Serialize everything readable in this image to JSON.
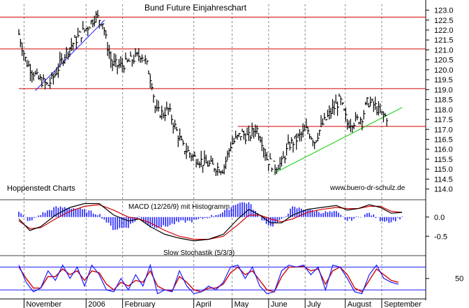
{
  "chart_data": {
    "type": "line",
    "title": "Bund Future Einjahreschart",
    "source_left": "Hoppenstedt Charts",
    "source_right": "www.buero-dr-schulz.de",
    "colors": {
      "price": "#000000",
      "support": "#d00000",
      "trend_up": "#1a1aff",
      "trend_green": "#00cc00",
      "macd": "#000000",
      "signal": "#d00000",
      "hist": "#2020ff",
      "stoch_k": "#1a1aff",
      "stoch_d": "#d00000"
    },
    "x_labels": [
      {
        "label": "November",
        "m": 0.2
      },
      {
        "label": "2006",
        "m": 1.9
      },
      {
        "label": "February",
        "m": 2.9
      },
      {
        "label": "April",
        "m": 4.85
      },
      {
        "label": "May",
        "m": 5.9
      },
      {
        "label": "June",
        "m": 6.9
      },
      {
        "label": "July",
        "m": 7.9
      },
      {
        "label": "August",
        "m": 9.0
      },
      {
        "label": "September",
        "m": 10.0
      }
    ],
    "price_panel": {
      "y_ticks": [
        114.0,
        114.5,
        115.0,
        115.5,
        116.0,
        116.5,
        117.0,
        117.5,
        118.0,
        118.5,
        119.0,
        119.5,
        120.0,
        120.5,
        121.0,
        121.5,
        122.0,
        122.5,
        123.0
      ],
      "ylim": [
        113.6,
        123.3
      ],
      "horizontal_lines": [
        122.65,
        121.05,
        119.05,
        117.15
      ],
      "price_path": [
        [
          0.0,
          121.8
        ],
        [
          0.2,
          120.4
        ],
        [
          0.5,
          119.6
        ],
        [
          0.8,
          119.2
        ],
        [
          1.0,
          119.8
        ],
        [
          1.3,
          120.9
        ],
        [
          1.6,
          121.6
        ],
        [
          1.9,
          122.2
        ],
        [
          2.1,
          122.7
        ],
        [
          2.3,
          122.4
        ],
        [
          2.4,
          121.4
        ],
        [
          2.55,
          120.3
        ],
        [
          2.8,
          120.2
        ],
        [
          3.1,
          120.5
        ],
        [
          3.35,
          120.8
        ],
        [
          3.5,
          120.3
        ],
        [
          3.65,
          119.3
        ],
        [
          3.75,
          117.9
        ],
        [
          3.95,
          117.8
        ],
        [
          4.1,
          118.0
        ],
        [
          4.3,
          117.0
        ],
        [
          4.5,
          116.1
        ],
        [
          4.8,
          115.6
        ],
        [
          5.1,
          115.3
        ],
        [
          5.4,
          115.1
        ],
        [
          5.6,
          115.0
        ],
        [
          5.8,
          116.2
        ],
        [
          6.1,
          116.8
        ],
        [
          6.3,
          116.6
        ],
        [
          6.5,
          117.1
        ],
        [
          6.65,
          116.5
        ],
        [
          6.8,
          115.5
        ],
        [
          7.0,
          115.1
        ],
        [
          7.2,
          115.3
        ],
        [
          7.4,
          116.2
        ],
        [
          7.6,
          116.5
        ],
        [
          7.9,
          117.0
        ],
        [
          8.1,
          116.4
        ],
        [
          8.3,
          117.2
        ],
        [
          8.6,
          118.0
        ],
        [
          8.8,
          118.5
        ],
        [
          9.0,
          117.3
        ],
        [
          9.2,
          117.4
        ],
        [
          9.4,
          117.6
        ],
        [
          9.55,
          118.4
        ],
        [
          9.75,
          118.2
        ],
        [
          9.9,
          117.8
        ],
        [
          10.1,
          117.6
        ]
      ],
      "trend_lines": [
        {
          "from": [
            0.45,
            118.95
          ],
          "to": [
            2.35,
            122.5
          ],
          "color": "#1a1aff"
        },
        {
          "from": [
            7.0,
            114.8
          ],
          "to": [
            10.5,
            118.1
          ],
          "color": "#00cc00"
        }
      ]
    },
    "macd_panel": {
      "label": "MACD (12/26/9) mit Histogramm",
      "y_ticks": [
        0.0,
        -0.5
      ],
      "ylim": [
        -0.75,
        0.45
      ],
      "macd_path": [
        [
          0.0,
          -0.05
        ],
        [
          0.3,
          -0.35
        ],
        [
          0.6,
          -0.25
        ],
        [
          1.0,
          0.05
        ],
        [
          1.4,
          0.25
        ],
        [
          1.8,
          0.35
        ],
        [
          2.2,
          0.35
        ],
        [
          2.6,
          0.05
        ],
        [
          3.0,
          -0.1
        ],
        [
          3.3,
          -0.05
        ],
        [
          3.6,
          -0.25
        ],
        [
          4.0,
          -0.45
        ],
        [
          4.4,
          -0.55
        ],
        [
          4.8,
          -0.62
        ],
        [
          5.2,
          -0.58
        ],
        [
          5.6,
          -0.45
        ],
        [
          6.0,
          -0.05
        ],
        [
          6.3,
          0.2
        ],
        [
          6.6,
          0.05
        ],
        [
          6.9,
          -0.15
        ],
        [
          7.2,
          -0.15
        ],
        [
          7.5,
          0.05
        ],
        [
          7.9,
          0.2
        ],
        [
          8.3,
          0.25
        ],
        [
          8.7,
          0.3
        ],
        [
          9.0,
          0.18
        ],
        [
          9.3,
          0.22
        ],
        [
          9.6,
          0.32
        ],
        [
          9.9,
          0.25
        ],
        [
          10.2,
          0.1
        ],
        [
          10.5,
          0.12
        ]
      ],
      "signal_path": [
        [
          0.0,
          -0.1
        ],
        [
          0.3,
          -0.3
        ],
        [
          0.6,
          -0.28
        ],
        [
          1.0,
          -0.05
        ],
        [
          1.4,
          0.15
        ],
        [
          1.8,
          0.28
        ],
        [
          2.2,
          0.32
        ],
        [
          2.6,
          0.18
        ],
        [
          3.0,
          0.0
        ],
        [
          3.3,
          -0.05
        ],
        [
          3.6,
          -0.15
        ],
        [
          4.0,
          -0.35
        ],
        [
          4.4,
          -0.5
        ],
        [
          4.8,
          -0.58
        ],
        [
          5.2,
          -0.58
        ],
        [
          5.6,
          -0.5
        ],
        [
          6.0,
          -0.2
        ],
        [
          6.3,
          0.05
        ],
        [
          6.6,
          0.05
        ],
        [
          6.9,
          -0.05
        ],
        [
          7.2,
          -0.12
        ],
        [
          7.5,
          -0.05
        ],
        [
          7.9,
          0.12
        ],
        [
          8.3,
          0.2
        ],
        [
          8.7,
          0.25
        ],
        [
          9.0,
          0.22
        ],
        [
          9.3,
          0.22
        ],
        [
          9.6,
          0.28
        ],
        [
          9.9,
          0.28
        ],
        [
          10.2,
          0.15
        ],
        [
          10.5,
          0.12
        ]
      ]
    },
    "stoch_panel": {
      "label": "Slow Stochastik (5/3/3)",
      "y_ticks": [
        50
      ],
      "ylim": [
        0,
        110
      ],
      "upper_line": 80,
      "lower_line": 20,
      "k_path": [
        [
          0.0,
          85
        ],
        [
          0.2,
          40
        ],
        [
          0.4,
          15
        ],
        [
          0.6,
          25
        ],
        [
          0.8,
          70
        ],
        [
          1.0,
          45
        ],
        [
          1.2,
          85
        ],
        [
          1.4,
          50
        ],
        [
          1.6,
          80
        ],
        [
          1.8,
          30
        ],
        [
          2.0,
          85
        ],
        [
          2.2,
          60
        ],
        [
          2.4,
          20
        ],
        [
          2.6,
          15
        ],
        [
          2.8,
          50
        ],
        [
          3.0,
          20
        ],
        [
          3.2,
          60
        ],
        [
          3.4,
          30
        ],
        [
          3.6,
          85
        ],
        [
          3.8,
          10
        ],
        [
          4.0,
          20
        ],
        [
          4.2,
          15
        ],
        [
          4.4,
          70
        ],
        [
          4.6,
          30
        ],
        [
          4.8,
          10
        ],
        [
          5.0,
          15
        ],
        [
          5.2,
          30
        ],
        [
          5.4,
          20
        ],
        [
          5.6,
          40
        ],
        [
          5.8,
          80
        ],
        [
          6.0,
          85
        ],
        [
          6.2,
          50
        ],
        [
          6.4,
          80
        ],
        [
          6.6,
          30
        ],
        [
          6.8,
          10
        ],
        [
          7.0,
          15
        ],
        [
          7.2,
          70
        ],
        [
          7.4,
          85
        ],
        [
          7.6,
          80
        ],
        [
          7.8,
          85
        ],
        [
          8.0,
          60
        ],
        [
          8.2,
          80
        ],
        [
          8.4,
          20
        ],
        [
          8.6,
          85
        ],
        [
          8.8,
          80
        ],
        [
          9.0,
          50
        ],
        [
          9.2,
          15
        ],
        [
          9.4,
          10
        ],
        [
          9.6,
          60
        ],
        [
          9.8,
          85
        ],
        [
          10.0,
          50
        ],
        [
          10.2,
          40
        ],
        [
          10.4,
          35
        ]
      ],
      "d_path": [
        [
          0.0,
          80
        ],
        [
          0.2,
          50
        ],
        [
          0.4,
          25
        ],
        [
          0.6,
          25
        ],
        [
          0.8,
          55
        ],
        [
          1.0,
          55
        ],
        [
          1.2,
          75
        ],
        [
          1.4,
          60
        ],
        [
          1.6,
          70
        ],
        [
          1.8,
          45
        ],
        [
          2.0,
          70
        ],
        [
          2.2,
          65
        ],
        [
          2.4,
          35
        ],
        [
          2.6,
          20
        ],
        [
          2.8,
          40
        ],
        [
          3.0,
          30
        ],
        [
          3.2,
          45
        ],
        [
          3.4,
          40
        ],
        [
          3.6,
          70
        ],
        [
          3.8,
          30
        ],
        [
          4.0,
          20
        ],
        [
          4.2,
          18
        ],
        [
          4.4,
          55
        ],
        [
          4.6,
          40
        ],
        [
          4.8,
          20
        ],
        [
          5.0,
          15
        ],
        [
          5.2,
          25
        ],
        [
          5.4,
          25
        ],
        [
          5.6,
          35
        ],
        [
          5.8,
          65
        ],
        [
          6.0,
          80
        ],
        [
          6.2,
          60
        ],
        [
          6.4,
          70
        ],
        [
          6.6,
          45
        ],
        [
          6.8,
          20
        ],
        [
          7.0,
          15
        ],
        [
          7.2,
          55
        ],
        [
          7.4,
          80
        ],
        [
          7.6,
          80
        ],
        [
          7.8,
          82
        ],
        [
          8.0,
          70
        ],
        [
          8.2,
          75
        ],
        [
          8.4,
          35
        ],
        [
          8.6,
          70
        ],
        [
          8.8,
          80
        ],
        [
          9.0,
          60
        ],
        [
          9.2,
          25
        ],
        [
          9.4,
          15
        ],
        [
          9.6,
          45
        ],
        [
          9.8,
          75
        ],
        [
          10.0,
          60
        ],
        [
          10.2,
          45
        ],
        [
          10.4,
          40
        ]
      ]
    }
  }
}
